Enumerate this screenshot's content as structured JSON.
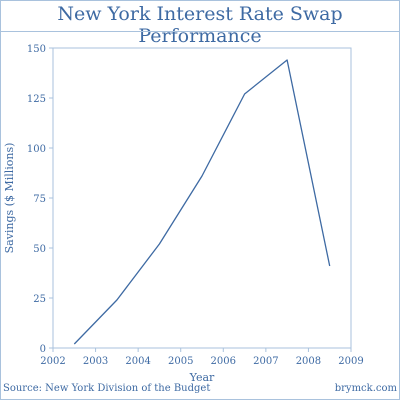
{
  "page": {
    "source": "Source: New York Division of the Budget",
    "credit": "brymck.com"
  },
  "colors": {
    "accent": "#3e6aa3",
    "line": "#3e6aa3",
    "axis": "#a9c2dd",
    "border": "#a9c2dd"
  },
  "chart_data": {
    "type": "line",
    "title": "New York Interest Rate Swap Performance",
    "xlabel": "Year",
    "ylabel": "Savings ($ Millions)",
    "xlim": [
      2002,
      2009
    ],
    "ylim": [
      0,
      150
    ],
    "x_ticks": [
      "2002",
      "2003",
      "2004",
      "2005",
      "2006",
      "2007",
      "2008",
      "2009"
    ],
    "y_ticks": [
      "0",
      "25",
      "50",
      "75",
      "100",
      "125",
      "150"
    ],
    "grid": false,
    "legend": "none",
    "series": [
      {
        "x": [
          2002.5,
          2003.5,
          2004.5,
          2005.5,
          2006.5,
          2007.5,
          2008.5
        ],
        "y": [
          2,
          24,
          52,
          86,
          127,
          144,
          41
        ]
      }
    ]
  }
}
